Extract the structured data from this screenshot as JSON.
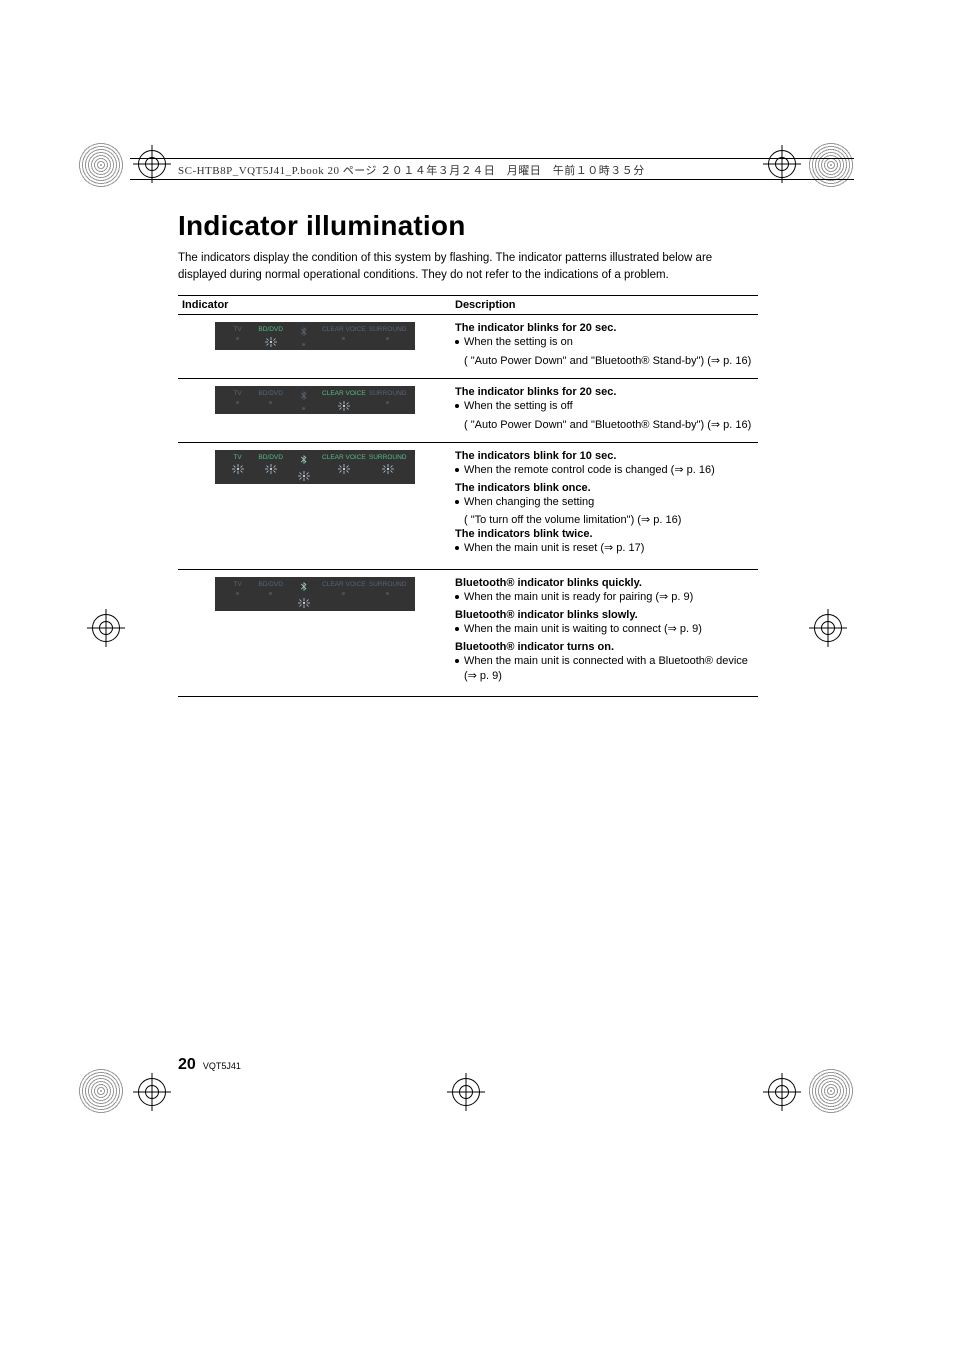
{
  "header_line": "SC-HTB8P_VQT5J41_P.book  20 ページ  ２０１４年３月２４日　月曜日　午前１０時３５分",
  "title": "Indicator illumination",
  "intro": "The indicators display the condition of this system by flashing. The indicator patterns illustrated below are displayed during normal operational conditions. They do not refer to the indications of a problem.",
  "col_indicator": "Indicator",
  "col_description": "Description",
  "panel_labels": {
    "tv": "TV",
    "bddvd": "BD/DVD",
    "bt": "",
    "cv": "CLEAR VOICE",
    "sr": "SURROUND"
  },
  "rows": [
    {
      "blink_positions": [
        1
      ],
      "desc": [
        {
          "bold": "The indicator blinks for 20 sec."
        },
        {
          "bullet": "When the setting is on"
        },
        {
          "sub": "( \"Auto Power Down\" and \"Bluetooth® Stand-by\") (⇒ p. 16)"
        }
      ]
    },
    {
      "blink_positions": [
        3
      ],
      "desc": [
        {
          "bold": "The indicator blinks for 20 sec."
        },
        {
          "bullet": "When the setting is off"
        },
        {
          "sub": "( \"Auto Power Down\" and \"Bluetooth® Stand-by\") (⇒ p. 16)"
        }
      ]
    },
    {
      "blink_positions": [
        0,
        1,
        2,
        3,
        4
      ],
      "desc": [
        {
          "bold": "The indicators blink for 10 sec."
        },
        {
          "bullet": "When the remote control code is changed (⇒ p. 16)"
        },
        {
          "bold": "The indicators blink once."
        },
        {
          "bullet": "When changing the setting"
        },
        {
          "sub": "( \"To turn off the volume limitation\") (⇒ p. 16)"
        },
        {
          "bold": "The indicators blink twice."
        },
        {
          "bullet": "When the main unit is reset (⇒ p. 17)"
        }
      ]
    },
    {
      "blink_positions": [
        2
      ],
      "desc": [
        {
          "bold": "Bluetooth® indicator blinks quickly."
        },
        {
          "bullet": "When the main unit is ready for pairing (⇒ p. 9)"
        },
        {
          "bold": "Bluetooth® indicator blinks slowly."
        },
        {
          "bullet": "When the main unit is waiting to connect (⇒ p. 9)"
        },
        {
          "bold": "Bluetooth® indicator turns on."
        },
        {
          "bullet": "When the main unit is connected with a Bluetooth® device (⇒ p. 9)"
        }
      ]
    }
  ],
  "page_number": "20",
  "doc_code": "VQT5J41",
  "colors": {
    "panel_bg": "#333333",
    "label_on": "#55bb88",
    "label_dim": "#556677"
  }
}
